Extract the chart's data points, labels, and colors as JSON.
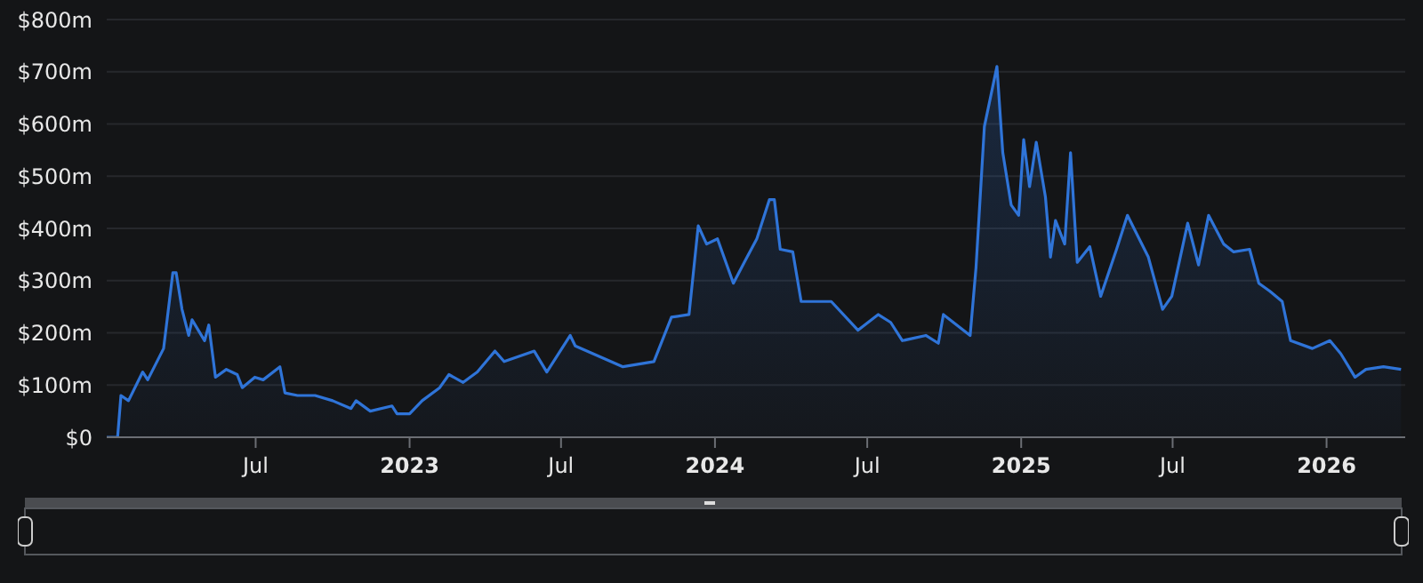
{
  "chart_data": {
    "type": "area",
    "x": [
      "2022-01-04",
      "2022-01-17",
      "2022-01-21",
      "2022-01-30",
      "2022-02-16",
      "2022-02-22",
      "2022-03-13",
      "2022-03-24",
      "2022-03-28",
      "2022-04-04",
      "2022-04-12",
      "2022-04-16",
      "2022-05-01",
      "2022-05-06",
      "2022-05-14",
      "2022-05-27",
      "2022-06-09",
      "2022-06-15",
      "2022-06-30",
      "2022-07-10",
      "2022-07-30",
      "2022-08-05",
      "2022-08-20",
      "2022-09-10",
      "2022-10-01",
      "2022-10-23",
      "2022-10-29",
      "2022-11-15",
      "2022-12-11",
      "2022-12-17",
      "2023-01-01",
      "2023-01-16",
      "2023-02-06",
      "2023-02-17",
      "2023-03-06",
      "2023-03-23",
      "2023-04-13",
      "2023-04-24",
      "2023-05-30",
      "2023-06-14",
      "2023-07-12",
      "2023-07-18",
      "2023-09-13",
      "2023-10-20",
      "2023-11-10",
      "2023-12-01",
      "2023-12-12",
      "2023-12-22",
      "2024-01-04",
      "2024-01-23",
      "2024-02-05",
      "2024-02-20",
      "2024-03-06",
      "2024-03-12",
      "2024-03-19",
      "2024-04-03",
      "2024-04-13",
      "2024-05-19",
      "2024-06-20",
      "2024-07-14",
      "2024-07-29",
      "2024-08-12",
      "2024-09-09",
      "2024-09-24",
      "2024-09-30",
      "2024-11-01",
      "2024-11-08",
      "2024-11-18",
      "2024-12-03",
      "2024-12-10",
      "2024-12-20",
      "2024-12-29",
      "2025-01-04",
      "2025-01-11",
      "2025-01-19",
      "2025-01-30",
      "2025-02-05",
      "2025-02-11",
      "2025-02-22",
      "2025-03-01",
      "2025-03-09",
      "2025-03-24",
      "2025-04-06",
      "2025-04-25",
      "2025-05-08",
      "2025-06-02",
      "2025-06-19",
      "2025-06-30",
      "2025-07-19",
      "2025-08-01",
      "2025-08-13",
      "2025-08-31",
      "2025-09-12",
      "2025-10-01",
      "2025-10-12",
      "2025-10-25",
      "2025-11-09",
      "2025-11-19",
      "2025-12-15",
      "2026-01-05",
      "2026-01-18",
      "2026-02-04",
      "2026-02-17",
      "2026-03-10",
      "2026-03-31"
    ],
    "series": [
      {
        "color": "#2f74d8",
        "values": [
          0,
          0,
          80,
          70,
          125,
          110,
          170,
          315,
          315,
          245,
          195,
          225,
          185,
          215,
          115,
          130,
          120,
          95,
          115,
          110,
          135,
          85,
          80,
          80,
          70,
          55,
          70,
          50,
          60,
          45,
          45,
          70,
          95,
          120,
          105,
          125,
          165,
          145,
          165,
          125,
          195,
          175,
          135,
          145,
          230,
          235,
          405,
          370,
          380,
          295,
          335,
          380,
          455,
          455,
          360,
          355,
          260,
          260,
          205,
          235,
          220,
          185,
          195,
          180,
          235,
          195,
          325,
          595,
          710,
          545,
          445,
          425,
          570,
          480,
          565,
          460,
          345,
          415,
          370,
          545,
          335,
          365,
          270,
          360,
          425,
          345,
          245,
          270,
          410,
          330,
          425,
          370,
          355,
          360,
          295,
          280,
          260,
          185,
          170,
          185,
          160,
          115,
          130,
          135,
          130
        ]
      }
    ],
    "xlim": [
      "2022-01-04",
      "2026-04-05"
    ],
    "xticks": [
      {
        "value": "2022-07-01",
        "label": "Jul"
      },
      {
        "value": "2023-01-01",
        "label": "2023"
      },
      {
        "value": "2023-07-01",
        "label": "Jul"
      },
      {
        "value": "2024-01-01",
        "label": "2024"
      },
      {
        "value": "2024-07-01",
        "label": "Jul"
      },
      {
        "value": "2025-01-01",
        "label": "2025"
      },
      {
        "value": "2025-07-01",
        "label": "Jul"
      },
      {
        "value": "2026-01-01",
        "label": "2026"
      }
    ],
    "ylim": [
      0,
      800
    ],
    "yticks": [
      {
        "value": 0,
        "label": "$0"
      },
      {
        "value": 100,
        "label": "$100m"
      },
      {
        "value": 200,
        "label": "$200m"
      },
      {
        "value": 300,
        "label": "$300m"
      },
      {
        "value": 400,
        "label": "$400m"
      },
      {
        "value": 500,
        "label": "$500m"
      },
      {
        "value": 600,
        "label": "$600m"
      },
      {
        "value": 700,
        "label": "$700m"
      },
      {
        "value": 800,
        "label": "$800m"
      }
    ],
    "grid": "y",
    "legend": false
  }
}
